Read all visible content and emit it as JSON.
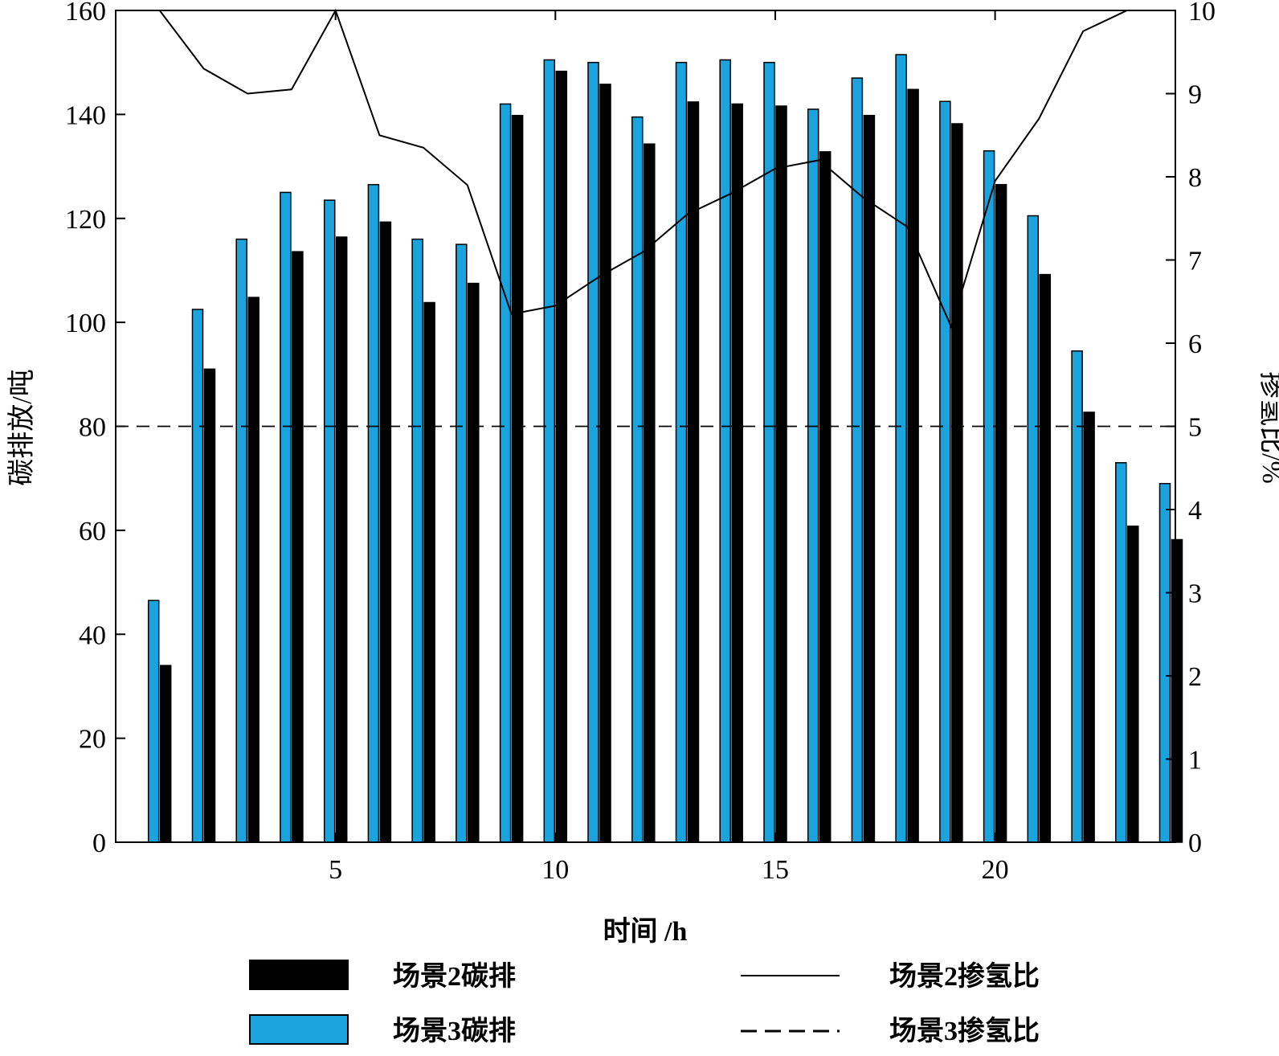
{
  "chart_data": {
    "type": "bar",
    "xlabel": "时间 /h",
    "ylabel_left": "碳排放/吨",
    "ylabel_right": "掺氢比/%",
    "x": [
      1,
      2,
      3,
      4,
      5,
      6,
      7,
      8,
      9,
      10,
      11,
      12,
      13,
      14,
      15,
      16,
      17,
      18,
      19,
      20,
      21,
      22,
      23,
      24
    ],
    "xlim": [
      0,
      24.1
    ],
    "x_ticks": [
      5,
      10,
      15,
      20
    ],
    "ylim_left": [
      0,
      160
    ],
    "y_ticks_left": [
      0,
      20,
      40,
      60,
      80,
      100,
      120,
      140,
      160
    ],
    "ylim_right": [
      0,
      10
    ],
    "y_ticks_right": [
      0,
      1,
      2,
      3,
      4,
      5,
      6,
      7,
      8,
      9,
      10
    ],
    "grid": false,
    "legend_position": "bottom",
    "bar_series": [
      {
        "name": "场景3碳排",
        "color": "#1aa3dd",
        "values": [
          46.5,
          102.5,
          116,
          125,
          123.5,
          126.5,
          116,
          115,
          142,
          150.5,
          150,
          139.5,
          150,
          150.5,
          150,
          141,
          147,
          151.5,
          142.5,
          133,
          120.5,
          94.5,
          73,
          69
        ]
      },
      {
        "name": "场景2碳排",
        "color": "#000000",
        "values": [
          34,
          91,
          104.8,
          113.6,
          116.4,
          119.3,
          103.8,
          107.5,
          139.8,
          148.3,
          145.8,
          134.3,
          142.4,
          142,
          141.6,
          132.8,
          139.8,
          144.8,
          138.2,
          126.5,
          109.2,
          82.7,
          60.8,
          58.2
        ]
      }
    ],
    "line_series": [
      {
        "name": "场景2掺氢比",
        "axis": "right",
        "style": "solid",
        "values": [
          10,
          9.3,
          9.0,
          9.05,
          10,
          8.5,
          8.35,
          7.9,
          6.35,
          6.45,
          6.8,
          7.1,
          7.55,
          7.8,
          8.1,
          8.2,
          7.75,
          7.4,
          6.2,
          7.95,
          8.7,
          9.75,
          10,
          10
        ]
      },
      {
        "name": "场景3掺氢比",
        "axis": "right",
        "style": "dashed",
        "values": [
          5,
          5,
          5,
          5,
          5,
          5,
          5,
          5,
          5,
          5,
          5,
          5,
          5,
          5,
          5,
          5,
          5,
          5,
          5,
          5,
          5,
          5,
          5,
          5
        ]
      }
    ]
  },
  "legend": {
    "items": [
      {
        "label": "场景2碳排",
        "kind": "bar",
        "color": "#000000"
      },
      {
        "label": "场景3碳排",
        "kind": "bar",
        "color": "#1aa3dd"
      },
      {
        "label": "场景2掺氢比",
        "kind": "line",
        "style": "solid"
      },
      {
        "label": "场景3掺氢比",
        "kind": "line",
        "style": "dashed"
      }
    ]
  }
}
